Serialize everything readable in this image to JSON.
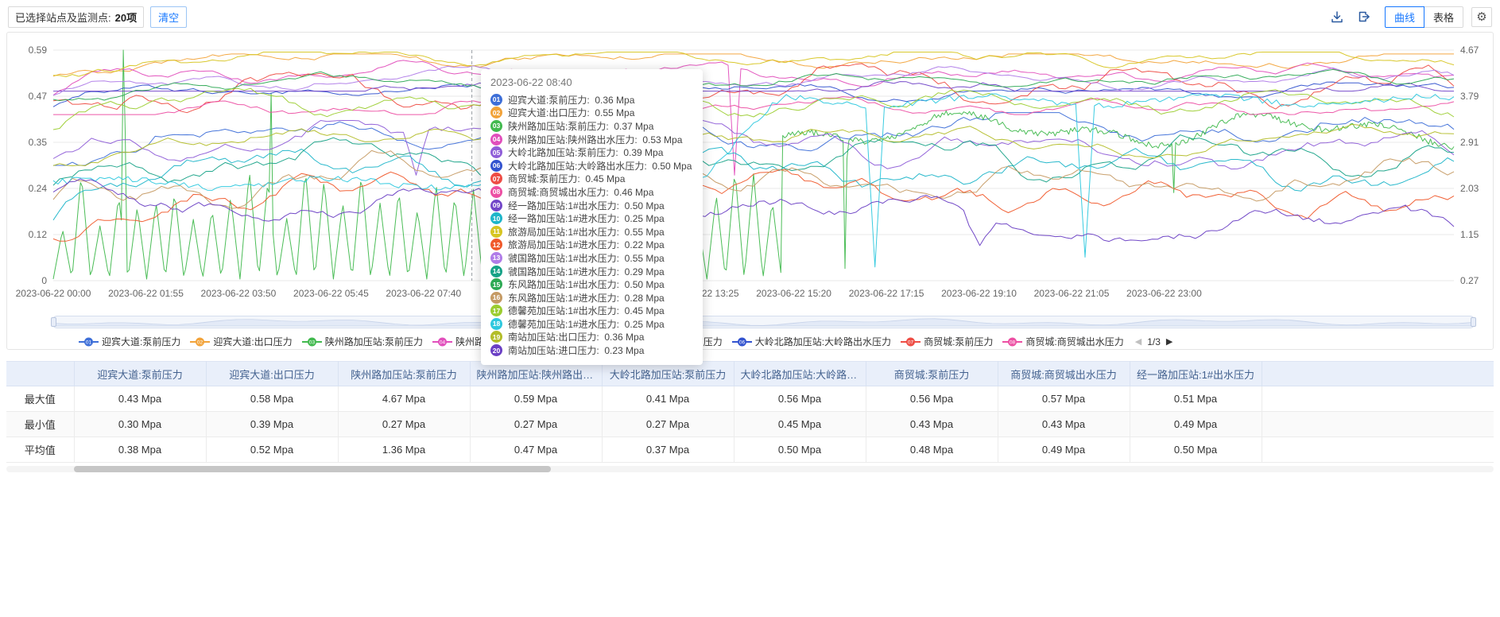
{
  "toolbar": {
    "selected_label": "已选择站点及监测点:",
    "selected_count": "20项",
    "clear_label": "清空",
    "curve_label": "曲线",
    "table_label": "表格",
    "gear_icon": "⚙"
  },
  "chart_data": {
    "type": "line",
    "x_axis": {
      "labels": [
        "2023-06-22 00:00",
        "2023-06-22 01:55",
        "2023-06-22 03:50",
        "2023-06-22 05:45",
        "2023-06-22 07:40",
        "2023-06-22 13:25",
        "2023-06-22 15:20",
        "2023-06-22 17:15",
        "2023-06-22 19:10",
        "2023-06-22 21:05",
        "2023-06-22 23:00"
      ]
    },
    "y_axis_left": {
      "min": 0,
      "max": 0.59,
      "ticks": [
        "0",
        "0.12",
        "0.24",
        "0.35",
        "0.47",
        "0.59"
      ]
    },
    "y_axis_right": {
      "min": 0.27,
      "max": 4.67,
      "ticks": [
        "0.27",
        "1.15",
        "2.03",
        "2.91",
        "3.79",
        "4.67"
      ]
    },
    "cursor": {
      "time": "2023-06-22 08:40"
    },
    "series": [
      {
        "id": "01",
        "name": "迎宾大道:泵前压力",
        "value": "0.36 Mpa",
        "color": "#3e6fd8"
      },
      {
        "id": "02",
        "name": "迎宾大道:出口压力",
        "value": "0.55 Mpa",
        "color": "#f2a33a"
      },
      {
        "id": "03",
        "name": "陕州路加压站:泵前压力",
        "value": "0.37 Mpa",
        "color": "#41b94e",
        "axis": "right"
      },
      {
        "id": "04",
        "name": "陕州路加压站:陕州路出水压力",
        "value": "0.53 Mpa",
        "color": "#e14fbc"
      },
      {
        "id": "05",
        "name": "大岭北路加压站:泵前压力",
        "value": "0.39 Mpa",
        "color": "#8f5ed8"
      },
      {
        "id": "06",
        "name": "大岭北路加压站:大岭路出水压力",
        "value": "0.50 Mpa",
        "color": "#3353cf"
      },
      {
        "id": "07",
        "name": "商贸城:泵前压力",
        "value": "0.45 Mpa",
        "color": "#ee4d45"
      },
      {
        "id": "08",
        "name": "商贸城:商贸城出水压力",
        "value": "0.46 Mpa",
        "color": "#ec4fa3"
      },
      {
        "id": "09",
        "name": "经一路加压站:1#出水压力",
        "value": "0.50 Mpa",
        "color": "#7246c8"
      },
      {
        "id": "10",
        "name": "经一路加压站:1#进水压力",
        "value": "0.25 Mpa",
        "color": "#1eb5c9"
      },
      {
        "id": "11",
        "name": "旅游局加压站:1#出水压力",
        "value": "0.55 Mpa",
        "color": "#d7c522"
      },
      {
        "id": "12",
        "name": "旅游局加压站:1#进水压力",
        "value": "0.22 Mpa",
        "color": "#f0592b"
      },
      {
        "id": "13",
        "name": "虢国路加压站:1#出水压力",
        "value": "0.55 Mpa",
        "color": "#b07ce8"
      },
      {
        "id": "14",
        "name": "虢国路加压站:1#进水压力",
        "value": "0.29 Mpa",
        "color": "#17a287"
      },
      {
        "id": "15",
        "name": "东风路加压站:1#出水压力",
        "value": "0.50 Mpa",
        "color": "#2da954"
      },
      {
        "id": "16",
        "name": "东风路加压站:1#进水压力",
        "value": "0.28 Mpa",
        "color": "#c59a63"
      },
      {
        "id": "17",
        "name": "德馨苑加压站:1#出水压力",
        "value": "0.45 Mpa",
        "color": "#9ccd31"
      },
      {
        "id": "18",
        "name": "德馨苑加压站:1#进水压力",
        "value": "0.25 Mpa",
        "color": "#2ec8de"
      },
      {
        "id": "19",
        "name": "南站加压站:出口压力",
        "value": "0.36 Mpa",
        "color": "#b3bd29"
      },
      {
        "id": "20",
        "name": "南站加压站:进口压力",
        "value": "0.23 Mpa",
        "color": "#6a3fc4"
      }
    ],
    "legend": {
      "page": "1/3",
      "prev_icon": "◀",
      "next_icon": "▶",
      "visible_count": 8
    }
  },
  "table": {
    "columns": [
      "迎宾大道:泵前压力",
      "迎宾大道:出口压力",
      "陕州路加压站:泵前压力",
      "陕州路加压站:陕州路出水压力",
      "大岭北路加压站:泵前压力",
      "大岭北路加压站:大岭路出水压力",
      "商贸城:泵前压力",
      "商贸城:商贸城出水压力",
      "经一路加压站:1#出水压力"
    ],
    "row_headers": [
      "最大值",
      "最小值",
      "平均值"
    ],
    "rows": [
      [
        "0.43 Mpa",
        "0.58 Mpa",
        "4.67 Mpa",
        "0.59 Mpa",
        "0.41 Mpa",
        "0.56 Mpa",
        "0.56 Mpa",
        "0.57 Mpa",
        "0.51 Mpa"
      ],
      [
        "0.30 Mpa",
        "0.39 Mpa",
        "0.27 Mpa",
        "0.27 Mpa",
        "0.27 Mpa",
        "0.45 Mpa",
        "0.43 Mpa",
        "0.43 Mpa",
        "0.49 Mpa"
      ],
      [
        "0.38 Mpa",
        "0.52 Mpa",
        "1.36 Mpa",
        "0.47 Mpa",
        "0.37 Mpa",
        "0.50 Mpa",
        "0.48 Mpa",
        "0.49 Mpa",
        "0.50 Mpa"
      ]
    ]
  }
}
